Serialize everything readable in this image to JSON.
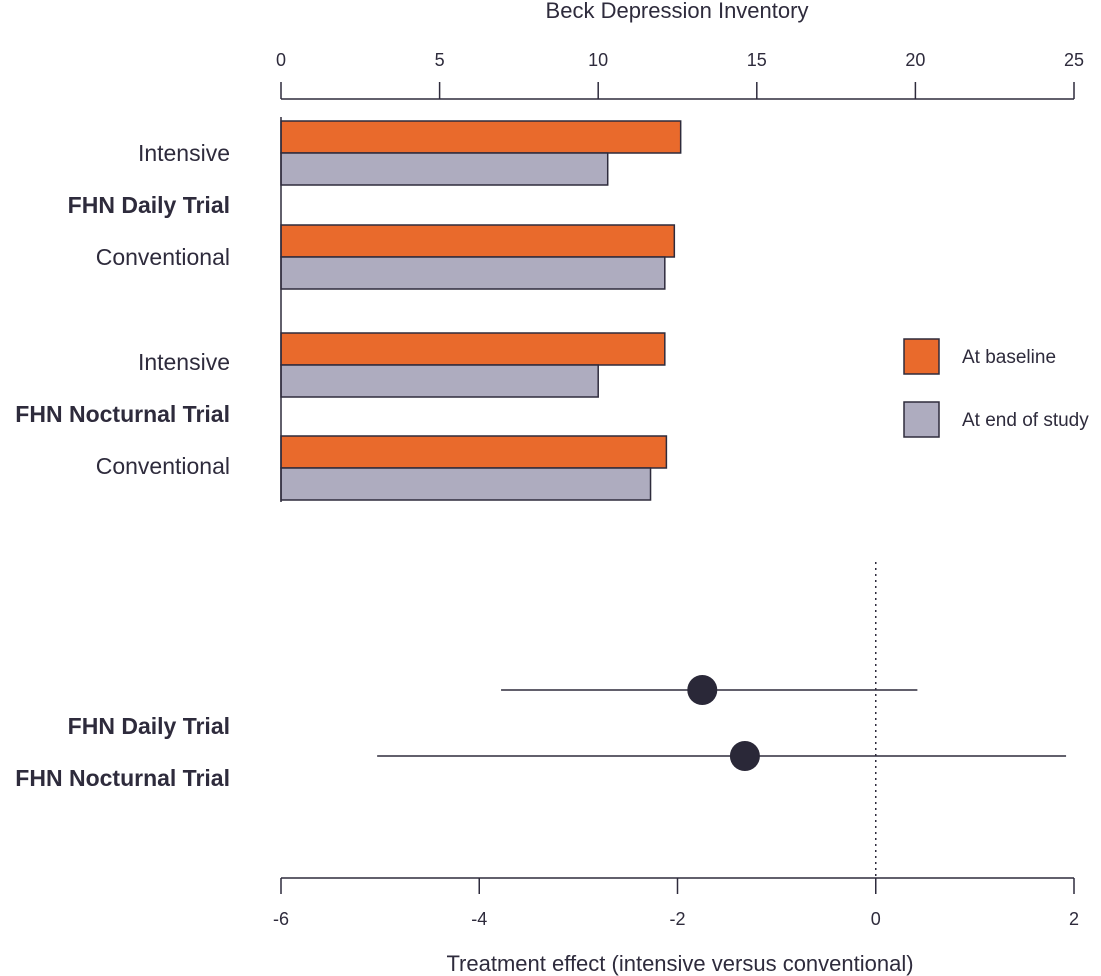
{
  "chart_data": [
    {
      "type": "bar",
      "orientation": "horizontal",
      "title": "",
      "xlabel": "Beck Depression Inventory",
      "xlim": [
        0,
        25
      ],
      "x_ticks": [
        "0",
        "5",
        "10",
        "15",
        "20",
        "25"
      ],
      "groups": [
        "FHN Daily Trial",
        "FHN Nocturnal Trial"
      ],
      "categories": [
        "Intensive",
        "Conventional",
        "Intensive",
        "Conventional"
      ],
      "series": [
        {
          "name": "At baseline",
          "color": "#e96a2c",
          "values": [
            12.6,
            12.4,
            12.1,
            12.15
          ]
        },
        {
          "name": "At end of study",
          "color": "#aeacbf",
          "values": [
            10.3,
            12.1,
            10.0,
            11.65
          ]
        }
      ],
      "legend_position": "right"
    },
    {
      "type": "scatter",
      "subtype": "forest",
      "xlabel": "Treatment effect (intensive versus conventional)",
      "xlim": [
        -6,
        2
      ],
      "x_ticks": [
        "-6",
        "-4",
        "-2",
        "0",
        "2"
      ],
      "reference_line": 0,
      "marker_color": "#2a2838",
      "categories": [
        "FHN Daily Trial",
        "FHN Nocturnal Trial"
      ],
      "estimates": [
        -1.75,
        -1.32
      ],
      "ci_low": [
        -3.78,
        -5.03
      ],
      "ci_high": [
        0.42,
        1.92
      ]
    }
  ]
}
